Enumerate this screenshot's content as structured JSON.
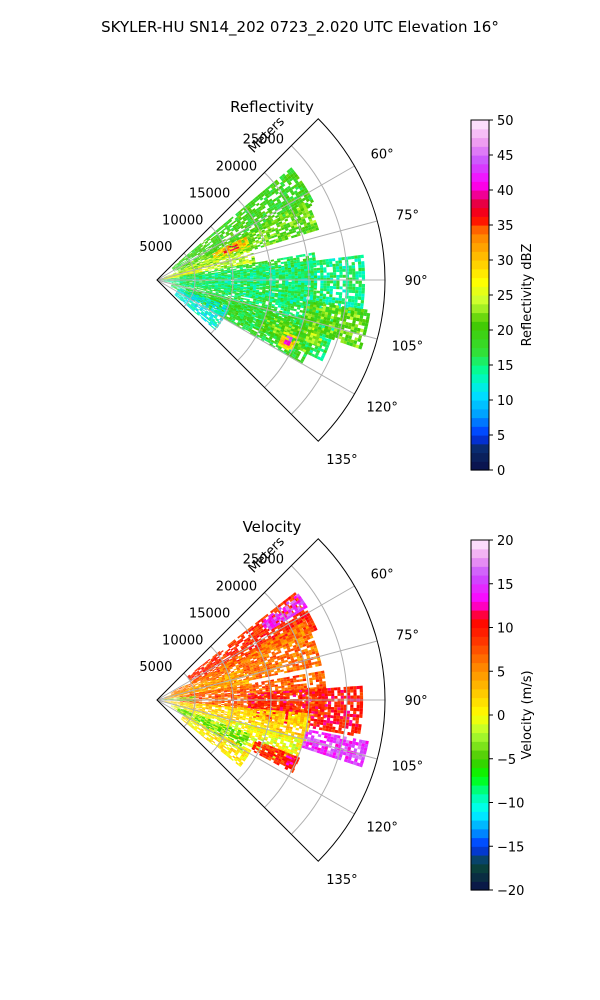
{
  "figure": {
    "title": "SKYLER-HU  SN14_202  0723_2.020 UTC Elevation 16°"
  },
  "chart_data": [
    {
      "type": "heatmap",
      "projection": "polar-sector",
      "title": "Reflectivity",
      "radial_label": "Meters",
      "theta_range_deg": [
        45,
        135
      ],
      "r_range": [
        0,
        30000
      ],
      "r_ticks": [
        5000,
        10000,
        15000,
        20000,
        25000
      ],
      "r_tick_labels": [
        "5000",
        "10000",
        "15000",
        "20000",
        "25000"
      ],
      "theta_ticks": [
        60,
        75,
        90,
        105,
        120,
        135
      ],
      "theta_tick_labels": [
        "60°",
        "75°",
        "90°",
        "105°",
        "120°",
        "135°"
      ],
      "grid": true,
      "colorbar": {
        "label": "Reflectivity dBZ",
        "range": [
          0,
          50
        ],
        "ticks": [
          0,
          5,
          10,
          15,
          20,
          25,
          30,
          35,
          40,
          45,
          50
        ],
        "tick_labels": [
          "0",
          "5",
          "10",
          "15",
          "20",
          "25",
          "30",
          "35",
          "40",
          "45",
          "50"
        ]
      },
      "echo_regions": [
        {
          "theta": [
            50,
            64
          ],
          "r": [
            2500,
            23000
          ],
          "value": 19
        },
        {
          "theta": [
            62,
            72
          ],
          "r": [
            3000,
            22000
          ],
          "value": 21
        },
        {
          "theta": [
            68,
            80
          ],
          "r": [
            1000,
            13000
          ],
          "value": 24
        },
        {
          "theta": [
            64,
            70
          ],
          "r": [
            8000,
            13000
          ],
          "value": 30
        },
        {
          "theta": [
            65,
            68
          ],
          "r": [
            9500,
            11500
          ],
          "value": 36
        },
        {
          "theta": [
            73,
            84
          ],
          "r": [
            200,
            6000
          ],
          "value": 27
        },
        {
          "theta": [
            80,
            100
          ],
          "r": [
            3000,
            21000
          ],
          "value": 17
        },
        {
          "theta": [
            83,
            100
          ],
          "r": [
            500,
            27000
          ],
          "value": 15
        },
        {
          "theta": [
            100,
            116
          ],
          "r": [
            2000,
            24000
          ],
          "value": 16
        },
        {
          "theta": [
            104,
            120
          ],
          "r": [
            4000,
            22000
          ],
          "value": 18
        },
        {
          "theta": [
            108,
            116
          ],
          "r": [
            15000,
            22000
          ],
          "value": 21
        },
        {
          "theta": [
            112,
            118
          ],
          "r": [
            18000,
            19800
          ],
          "value": 29
        },
        {
          "theta": [
            113,
            116
          ],
          "r": [
            18600,
            19300
          ],
          "value": 43
        },
        {
          "theta": [
            106,
            112
          ],
          "r": [
            21000,
            23000
          ],
          "value": 24
        },
        {
          "theta": [
            110,
            130
          ],
          "r": [
            3000,
            10000
          ],
          "value": 12
        },
        {
          "theta": [
            98,
            108
          ],
          "r": [
            20000,
            28000
          ],
          "value": 21
        }
      ]
    },
    {
      "type": "heatmap",
      "projection": "polar-sector",
      "title": "Velocity",
      "radial_label": "Meters",
      "theta_range_deg": [
        45,
        135
      ],
      "r_range": [
        0,
        30000
      ],
      "r_ticks": [
        5000,
        10000,
        15000,
        20000,
        25000
      ],
      "r_tick_labels": [
        "5000",
        "10000",
        "15000",
        "20000",
        "25000"
      ],
      "theta_ticks": [
        60,
        75,
        90,
        105,
        120,
        135
      ],
      "theta_tick_labels": [
        "60°",
        "75°",
        "90°",
        "105°",
        "120°",
        "135°"
      ],
      "grid": true,
      "colorbar": {
        "label": "Velocity (m/s)",
        "range": [
          -20,
          20
        ],
        "ticks": [
          -20,
          -15,
          -10,
          -5,
          0,
          5,
          10,
          15,
          20
        ],
        "tick_labels": [
          "−20",
          "−15",
          "−10",
          "−5",
          "0",
          "5",
          "10",
          "15",
          "20"
        ]
      },
      "echo_regions": [
        {
          "theta": [
            52,
            66
          ],
          "r": [
            5000,
            23000
          ],
          "value": 9
        },
        {
          "theta": [
            53,
            58
          ],
          "r": [
            17000,
            23000
          ],
          "value": 15
        },
        {
          "theta": [
            62,
            78
          ],
          "r": [
            2000,
            22000
          ],
          "value": 6
        },
        {
          "theta": [
            70,
            82
          ],
          "r": [
            1000,
            12000
          ],
          "value": 4
        },
        {
          "theta": [
            80,
            96
          ],
          "r": [
            3000,
            22000
          ],
          "value": 7
        },
        {
          "theta": [
            86,
            100
          ],
          "r": [
            12000,
            27000
          ],
          "value": 10
        },
        {
          "theta": [
            95,
            106
          ],
          "r": [
            1000,
            20000
          ],
          "value": 2
        },
        {
          "theta": [
            101,
            108
          ],
          "r": [
            20000,
            28000
          ],
          "value": 15
        },
        {
          "theta": [
            105,
            116
          ],
          "r": [
            2000,
            20000
          ],
          "value": 0
        },
        {
          "theta": [
            110,
            120
          ],
          "r": [
            3000,
            13000
          ],
          "value": -4
        },
        {
          "theta": [
            112,
            118
          ],
          "r": [
            14000,
            20000
          ],
          "value": 9
        },
        {
          "theta": [
            113,
            116
          ],
          "r": [
            18500,
            19800
          ],
          "value": 11
        },
        {
          "theta": [
            118,
            128
          ],
          "r": [
            4000,
            14000
          ],
          "value": 1
        },
        {
          "theta": [
            84,
            92
          ],
          "r": [
            500,
            5000
          ],
          "value": -3
        }
      ]
    }
  ]
}
